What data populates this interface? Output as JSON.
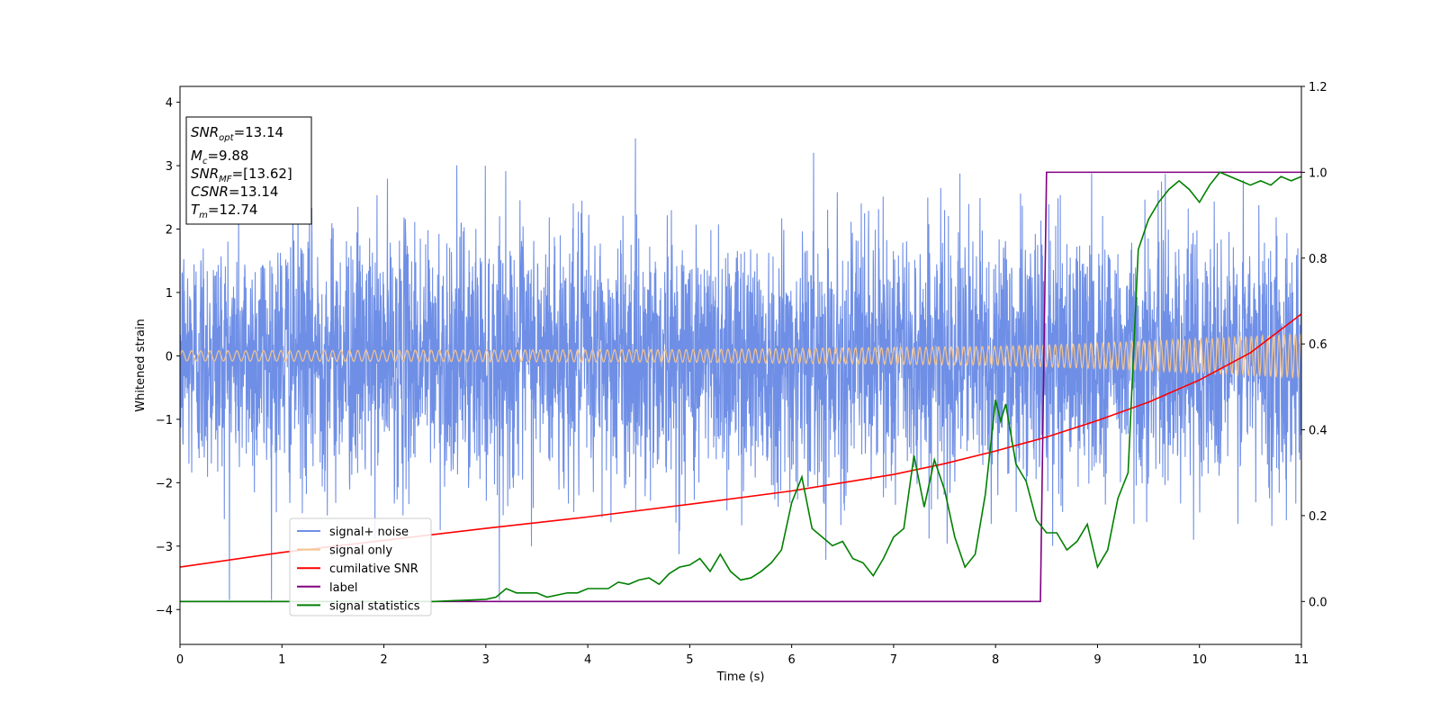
{
  "chart_data": {
    "type": "line",
    "xlabel": "Time (s)",
    "ylabel": "Whitened strain",
    "xlim": [
      0,
      11
    ],
    "ylim_left": [
      -4.55,
      4.25
    ],
    "ylim_right": [
      -0.1,
      1.2
    ],
    "x_ticks": [
      "0",
      "1",
      "2",
      "3",
      "4",
      "5",
      "6",
      "7",
      "8",
      "9",
      "10",
      "11"
    ],
    "y_ticks_left": [
      "−4",
      "−3",
      "−2",
      "−1",
      "0",
      "1",
      "2",
      "3",
      "4"
    ],
    "y_ticks_right": [
      "0.0",
      "0.2",
      "0.4",
      "0.6",
      "0.8",
      "1.0",
      "1.2"
    ],
    "legend_position": "lower-left",
    "info_box": {
      "snr_opt": {
        "base": "SNR",
        "sub": "opt",
        "value": "=13.14"
      },
      "mc": {
        "base": "M",
        "sub": "c",
        "value": "=9.88"
      },
      "snr_mf": {
        "base": "SNR",
        "sub": "MF",
        "value": "=[13.62]"
      },
      "csnr": {
        "base": "CSNR",
        "value": "=13.14"
      },
      "tm": {
        "base": "T",
        "sub": "m",
        "value": "=12.74"
      }
    },
    "series": [
      {
        "name": "signal+ noise",
        "color": "#6f8fe6",
        "axis": "left",
        "kind": "noise",
        "envelope": {
          "typical_sigma": 1.0,
          "max_abs": 3.85
        }
      },
      {
        "name": "signal only",
        "color": "#f3c48e",
        "axis": "left",
        "kind": "chirp",
        "amplitude": {
          "x": [
            0,
            5,
            8,
            9,
            10,
            11
          ],
          "y": [
            0.08,
            0.1,
            0.15,
            0.2,
            0.27,
            0.35
          ]
        }
      },
      {
        "name": "cumilative SNR",
        "color": "#ff0000",
        "axis": "left",
        "x": [
          0,
          1,
          2,
          3,
          4,
          5,
          6,
          7,
          7.5,
          8,
          8.5,
          9,
          9.5,
          10,
          10.5,
          11
        ],
        "y": [
          -3.33,
          -3.1,
          -2.91,
          -2.72,
          -2.54,
          -2.34,
          -2.13,
          -1.87,
          -1.7,
          -1.5,
          -1.28,
          -1.02,
          -0.73,
          -0.38,
          0.05,
          0.66
        ]
      },
      {
        "name": "label",
        "color": "#800080",
        "axis": "right",
        "x": [
          0,
          8.44,
          8.5,
          11
        ],
        "y": [
          0.0,
          0.0,
          1.0,
          1.0
        ]
      },
      {
        "name": "signal statistics",
        "color": "#008000",
        "axis": "right",
        "x": [
          0,
          1,
          2,
          2.5,
          3.0,
          3.1,
          3.2,
          3.3,
          3.5,
          3.6,
          3.8,
          3.9,
          4.0,
          4.2,
          4.3,
          4.4,
          4.5,
          4.6,
          4.7,
          4.8,
          4.9,
          5.0,
          5.1,
          5.2,
          5.3,
          5.4,
          5.5,
          5.6,
          5.7,
          5.8,
          5.9,
          6.0,
          6.1,
          6.2,
          6.3,
          6.4,
          6.5,
          6.6,
          6.7,
          6.8,
          6.9,
          7.0,
          7.1,
          7.2,
          7.3,
          7.4,
          7.5,
          7.6,
          7.7,
          7.8,
          7.9,
          8.0,
          8.05,
          8.1,
          8.2,
          8.3,
          8.4,
          8.5,
          8.6,
          8.7,
          8.8,
          8.9,
          9.0,
          9.1,
          9.2,
          9.3,
          9.4,
          9.5,
          9.6,
          9.7,
          9.8,
          9.9,
          10.0,
          10.1,
          10.2,
          10.3,
          10.4,
          10.5,
          10.6,
          10.7,
          10.8,
          10.9,
          11.0
        ],
        "y": [
          0.0,
          0.0,
          0.0,
          0.0,
          0.005,
          0.01,
          0.03,
          0.02,
          0.02,
          0.01,
          0.02,
          0.02,
          0.03,
          0.03,
          0.045,
          0.04,
          0.05,
          0.055,
          0.04,
          0.065,
          0.08,
          0.085,
          0.1,
          0.07,
          0.11,
          0.07,
          0.05,
          0.055,
          0.07,
          0.09,
          0.12,
          0.23,
          0.29,
          0.17,
          0.15,
          0.13,
          0.14,
          0.1,
          0.09,
          0.06,
          0.1,
          0.15,
          0.17,
          0.34,
          0.22,
          0.33,
          0.26,
          0.15,
          0.08,
          0.11,
          0.25,
          0.47,
          0.42,
          0.46,
          0.32,
          0.28,
          0.19,
          0.16,
          0.16,
          0.12,
          0.14,
          0.18,
          0.08,
          0.12,
          0.24,
          0.3,
          0.82,
          0.89,
          0.93,
          0.96,
          0.98,
          0.96,
          0.93,
          0.97,
          1.0,
          0.99,
          0.98,
          0.97,
          0.98,
          0.97,
          0.99,
          0.98,
          0.99
        ]
      }
    ]
  }
}
